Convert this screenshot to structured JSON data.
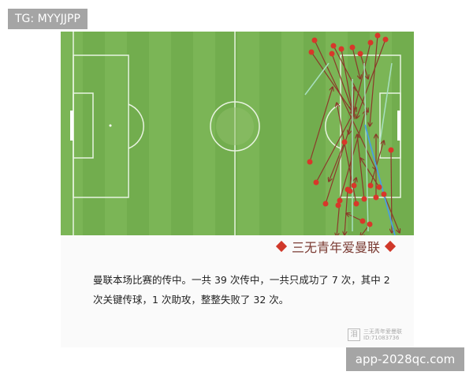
{
  "overlay_top": "TG: MYYJJPP",
  "overlay_bottom": "app-2028qc.com",
  "brand": "三无青年爱曼联",
  "description": "曼联本场比赛的传中。一共 39 次传中，一共只成功了 7 次，其中 2 次关键传球，1 次助攻，整整失败了 32 次。",
  "watermark": {
    "logo": "泪",
    "name": "三无青年爱曼联",
    "id": "ID:71083736"
  },
  "colors": {
    "pitch": "#72ad4e",
    "failed": "#8b3a2a",
    "success": "#a8e0c0",
    "assist": "#4a9ee0",
    "dot": "#d8372a"
  }
}
